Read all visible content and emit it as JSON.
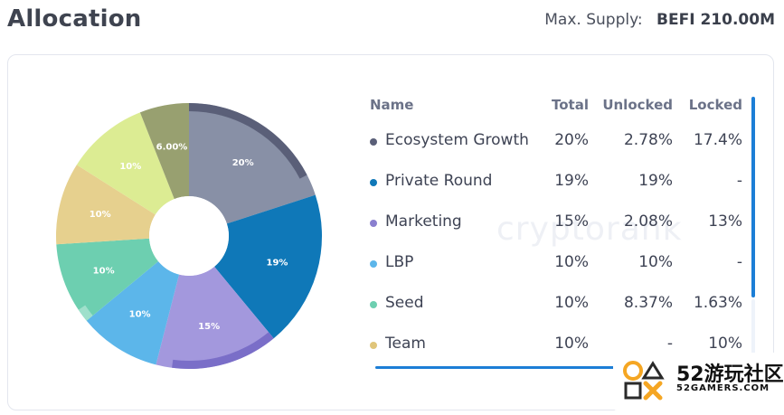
{
  "header": {
    "title": "Allocation",
    "supply_label": "Max. Supply:",
    "supply_value": "BEFI 210.00M"
  },
  "watermark": "cryptorank",
  "table": {
    "columns": [
      "Name",
      "Total",
      "Unlocked",
      "Locked"
    ],
    "rows": [
      {
        "name": "Ecosystem Growth",
        "total": "20%",
        "unlocked": "2.78%",
        "locked": "17.4%",
        "color": "#5a5f78"
      },
      {
        "name": "Private Round",
        "total": "19%",
        "unlocked": "19%",
        "locked": "-",
        "color": "#0f78b8"
      },
      {
        "name": "Marketing",
        "total": "15%",
        "unlocked": "2.08%",
        "locked": "13%",
        "color": "#8a7fcf"
      },
      {
        "name": "LBP",
        "total": "10%",
        "unlocked": "10%",
        "locked": "-",
        "color": "#5cb6ea"
      },
      {
        "name": "Seed",
        "total": "10%",
        "unlocked": "8.37%",
        "locked": "1.63%",
        "color": "#6dcfb0"
      },
      {
        "name": "Team",
        "total": "10%",
        "unlocked": "-",
        "locked": "10%",
        "color": "#e0c57a"
      }
    ]
  },
  "chart_data": {
    "type": "pie",
    "slices": [
      {
        "label": "20%",
        "value": 20,
        "color": "#8890a6",
        "locked_color": "#5a5f78",
        "locked_share": 0.87
      },
      {
        "label": "19%",
        "value": 19,
        "color": "#0f78b8",
        "locked_color": "#0f78b8",
        "locked_share": 0
      },
      {
        "label": "15%",
        "value": 15,
        "color": "#a398dd",
        "locked_color": "#7a6ec8",
        "locked_share": 0.87
      },
      {
        "label": "10%",
        "value": 10,
        "color": "#5cb6ea",
        "locked_color": "#5cb6ea",
        "locked_share": 0
      },
      {
        "label": "10%",
        "value": 10,
        "color": "#6dcfb0",
        "locked_color": "#9fe0cb",
        "locked_share": 0.163
      },
      {
        "label": "10%",
        "value": 10,
        "color": "#e6d08e",
        "locked_color": "#e6d08e",
        "locked_share": 1
      },
      {
        "label": "10%",
        "value": 10,
        "color": "#dcec93",
        "locked_color": "#dcec93",
        "locked_share": 1
      },
      {
        "label": "6.00%",
        "value": 6,
        "color": "#98a070",
        "locked_color": "#98a070",
        "locked_share": 1
      }
    ]
  },
  "logo": {
    "big_text": "52游玩社区",
    "small_text": "52GAMERS.COM"
  }
}
